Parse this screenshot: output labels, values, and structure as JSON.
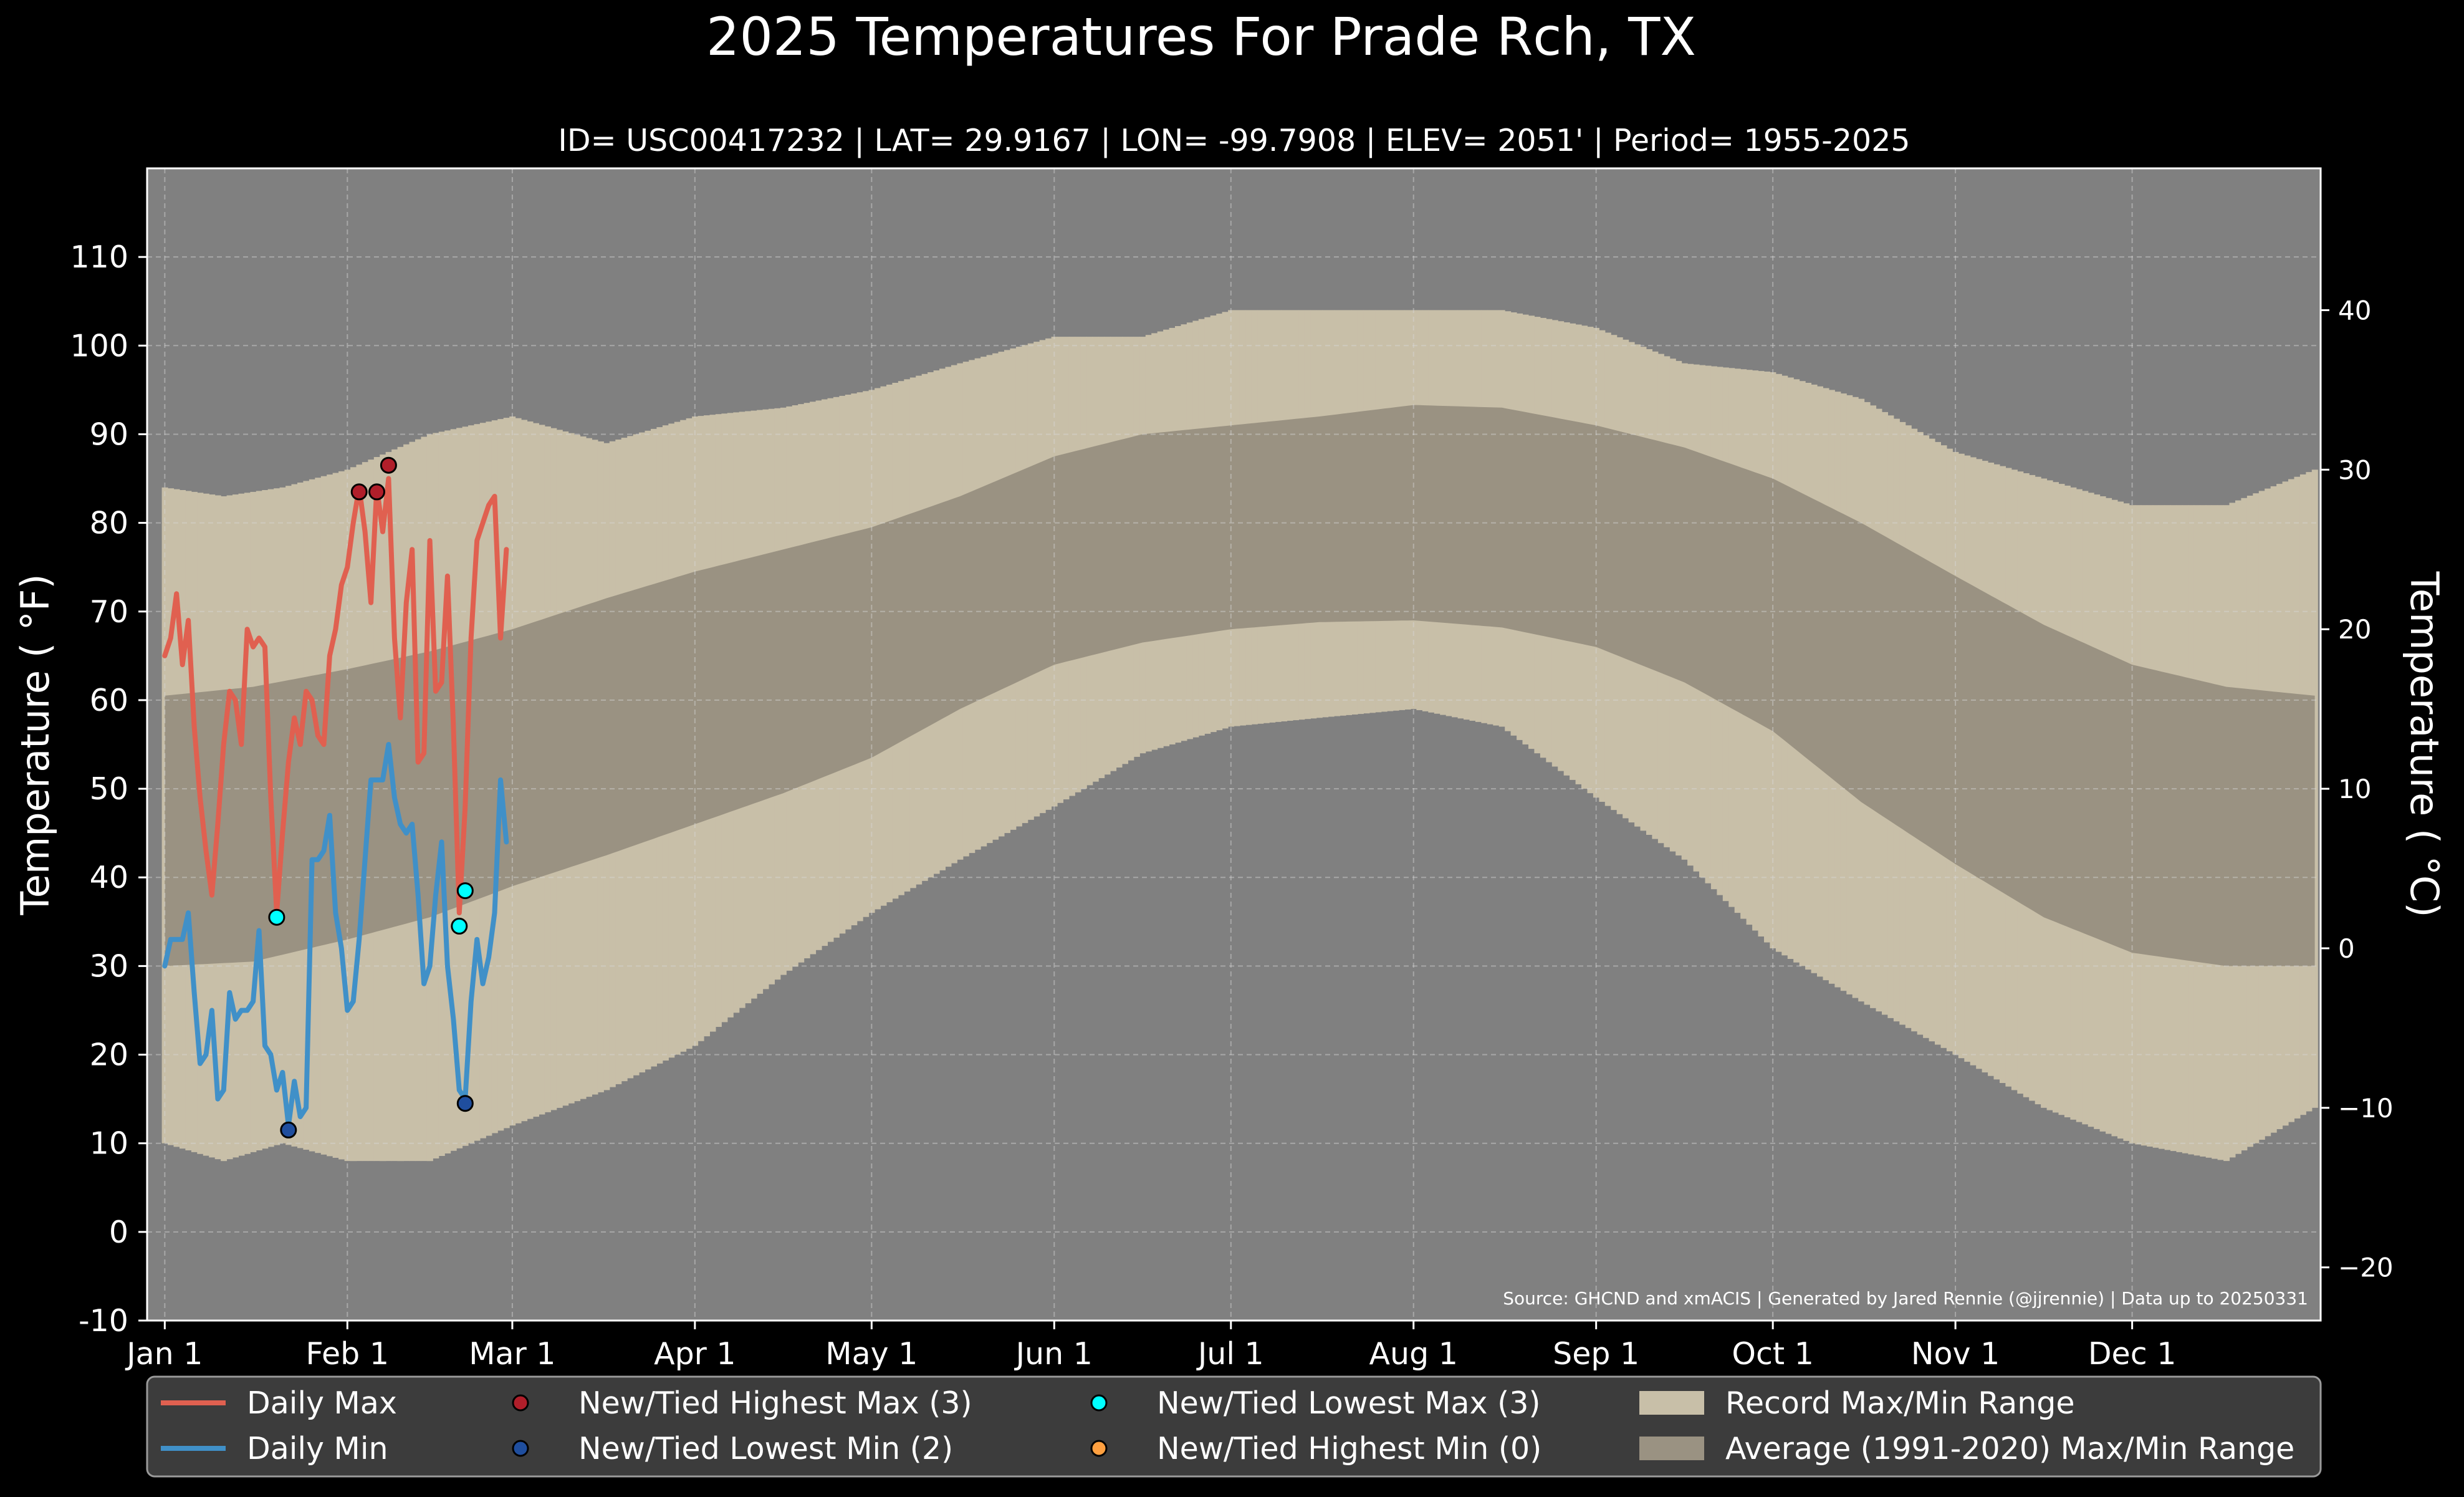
{
  "colors": {
    "background": "#000000",
    "plot_bg": "#808080",
    "record_band": "#c8bfa8",
    "normal_band": "#9a9282",
    "daily_max": "#e06050",
    "daily_min": "#4090c8",
    "record_high_max": "#b01e2a",
    "record_low_min": "#1f4e9e",
    "record_low_max": "#00ffff",
    "record_high_min": "#ffa040",
    "legend_bg": "#3c3c3c"
  },
  "chart_data": {
    "type": "line",
    "title": "2025 Temperatures For Prade Rch, TX",
    "subtitle": "ID= USC00417232 | LAT= 29.9167 | LON= -99.7908 | ELEV= 2051' | Period= 1955-2025",
    "ylabel": "Temperature ( $^{\\circ}$F)",
    "ylabel_display": "Temperature ( °F)",
    "ylabel_right": "Temperature ( °C)",
    "ylim": [
      -10,
      120
    ],
    "xlim": [
      -3,
      366
    ],
    "yticks": [
      "-10",
      "0",
      "10",
      "20",
      "30",
      "40",
      "50",
      "60",
      "70",
      "80",
      "90",
      "100",
      "110"
    ],
    "yticks_right": [
      "−20",
      "−10",
      "0",
      "10",
      "20",
      "30",
      "40"
    ],
    "x_tick_labels": [
      "Jan 1",
      "Feb 1",
      "Mar 1",
      "Apr 1",
      "May 1",
      "Jun 1",
      "Jul 1",
      "Aug 1",
      "Sep 1",
      "Oct 1",
      "Nov 1",
      "Dec 1"
    ],
    "x_tick_days": [
      0,
      31,
      59,
      90,
      120,
      151,
      181,
      212,
      243,
      273,
      304,
      334
    ],
    "grid": true,
    "legend_position": "bottom",
    "source_note": "Source: GHCND and xmACIS | Generated by Jared Rennie (@jjrennie) | Data up to 20250331",
    "normal_max": {
      "day": [
        0,
        15,
        31,
        45,
        59,
        75,
        90,
        105,
        120,
        135,
        151,
        166,
        181,
        196,
        212,
        227,
        243,
        258,
        273,
        288,
        304,
        319,
        334,
        350,
        365
      ],
      "value": [
        60.5,
        61.5,
        63.5,
        65.5,
        68,
        71.5,
        74.5,
        77,
        79.5,
        83,
        87.5,
        90,
        91,
        92,
        93.3,
        93,
        91,
        88.5,
        85,
        80,
        74,
        68.5,
        64,
        61.5,
        60.5
      ]
    },
    "normal_min": {
      "day": [
        0,
        15,
        31,
        45,
        59,
        75,
        90,
        105,
        120,
        135,
        151,
        166,
        181,
        196,
        212,
        227,
        243,
        258,
        273,
        288,
        304,
        319,
        334,
        350,
        365
      ],
      "value": [
        30,
        30.5,
        33,
        35.5,
        39,
        42.5,
        46,
        49.5,
        53.5,
        59,
        64,
        66.5,
        68,
        68.8,
        69,
        68.2,
        66,
        62,
        56.5,
        48.5,
        41.5,
        35.5,
        31.5,
        30,
        30
      ]
    },
    "record_max": {
      "day": [
        0,
        10,
        20,
        31,
        45,
        59,
        75,
        90,
        105,
        120,
        135,
        151,
        166,
        181,
        196,
        212,
        227,
        243,
        258,
        273,
        288,
        304,
        319,
        334,
        350,
        365
      ],
      "value": [
        84,
        83,
        84,
        86,
        90,
        92,
        89,
        92,
        93,
        95,
        98,
        101,
        101,
        104,
        104,
        104,
        104,
        102,
        98,
        97,
        94,
        88,
        85,
        82,
        82,
        86
      ]
    },
    "record_min": {
      "day": [
        0,
        10,
        20,
        31,
        45,
        59,
        75,
        90,
        105,
        120,
        135,
        151,
        166,
        181,
        196,
        212,
        227,
        243,
        258,
        273,
        288,
        304,
        319,
        334,
        350,
        365
      ],
      "value": [
        10,
        8,
        10,
        8,
        8,
        12,
        16,
        21,
        29,
        36,
        42,
        48,
        54,
        57,
        58,
        59,
        57,
        49,
        42,
        32,
        26,
        20,
        14,
        10,
        8,
        14
      ]
    },
    "series": [
      {
        "name": "Daily Max",
        "day": [
          0,
          1,
          2,
          3,
          4,
          5,
          6,
          7,
          8,
          9,
          10,
          11,
          12,
          13,
          14,
          15,
          16,
          17,
          18,
          19,
          20,
          21,
          22,
          23,
          24,
          25,
          26,
          27,
          28,
          29,
          30,
          31,
          32,
          33,
          34,
          35,
          36,
          37,
          38,
          39,
          40,
          41,
          42,
          43,
          44,
          45,
          46,
          47,
          48,
          49,
          50,
          51,
          52,
          53,
          54,
          55,
          56,
          57,
          58
        ],
        "value": [
          65,
          67,
          72,
          64,
          69,
          57,
          49,
          43,
          38,
          46,
          55,
          61,
          60,
          55,
          68,
          66,
          67,
          66,
          49,
          36,
          45,
          53,
          58,
          55,
          61,
          60,
          56,
          55,
          65,
          68,
          73,
          75,
          80,
          84,
          79,
          71,
          84,
          79,
          85,
          67,
          58,
          71,
          77,
          53,
          54,
          78,
          61,
          62,
          74,
          57,
          36,
          48,
          67,
          78,
          80,
          82,
          83,
          67,
          77
        ]
      },
      {
        "name": "Daily Min",
        "day": [
          0,
          1,
          2,
          3,
          4,
          5,
          6,
          7,
          8,
          9,
          10,
          11,
          12,
          13,
          14,
          15,
          16,
          17,
          18,
          19,
          20,
          21,
          22,
          23,
          24,
          25,
          26,
          27,
          28,
          29,
          30,
          31,
          32,
          33,
          34,
          35,
          36,
          37,
          38,
          39,
          40,
          41,
          42,
          43,
          44,
          45,
          46,
          47,
          48,
          49,
          50,
          51,
          52,
          53,
          54,
          55,
          56,
          57,
          58
        ],
        "value": [
          30,
          33,
          33,
          33,
          36,
          27,
          19,
          20,
          25,
          15,
          16,
          27,
          24,
          25,
          25,
          26,
          34,
          21,
          20,
          16,
          18,
          12,
          17,
          13,
          14,
          42,
          42,
          43,
          47,
          36,
          32,
          25,
          26,
          33,
          42,
          51,
          51,
          51,
          55,
          49,
          46,
          45,
          46,
          38,
          28,
          30,
          38,
          44,
          30,
          24,
          16,
          15,
          26,
          33,
          28,
          31,
          36,
          51,
          44
        ]
      }
    ],
    "record_points": [
      {
        "name": "New/Tied Highest Max (3)",
        "day": [
          33,
          36,
          38
        ],
        "value": [
          83.5,
          83.5,
          86.5
        ]
      },
      {
        "name": "New/Tied Lowest Min (2)",
        "day": [
          21,
          51
        ],
        "value": [
          11.5,
          14.5
        ]
      },
      {
        "name": "New/Tied Lowest Max (3)",
        "day": [
          19,
          50,
          51
        ],
        "value": [
          35.5,
          34.5,
          38.5
        ]
      },
      {
        "name": "New/Tied Highest Min (0)",
        "day": [],
        "value": []
      }
    ],
    "legend": [
      {
        "label": "Daily Max",
        "kind": "line",
        "color": "#e06050"
      },
      {
        "label": "Daily Min",
        "kind": "line",
        "color": "#4090c8"
      },
      {
        "label": "New/Tied Highest Max (3)",
        "kind": "dot",
        "color": "#b01e2a"
      },
      {
        "label": "New/Tied Lowest Min (2)",
        "kind": "dot",
        "color": "#1f4e9e"
      },
      {
        "label": "New/Tied Lowest Max (3)",
        "kind": "dot",
        "color": "#00ffff"
      },
      {
        "label": "New/Tied Highest Min (0)",
        "kind": "dot",
        "color": "#ffa040"
      },
      {
        "label": "Record Max/Min Range",
        "kind": "patch",
        "color": "#c8bfa8"
      },
      {
        "label": "Average (1991-2020) Max/Min Range",
        "kind": "patch",
        "color": "#9a9282"
      }
    ]
  }
}
